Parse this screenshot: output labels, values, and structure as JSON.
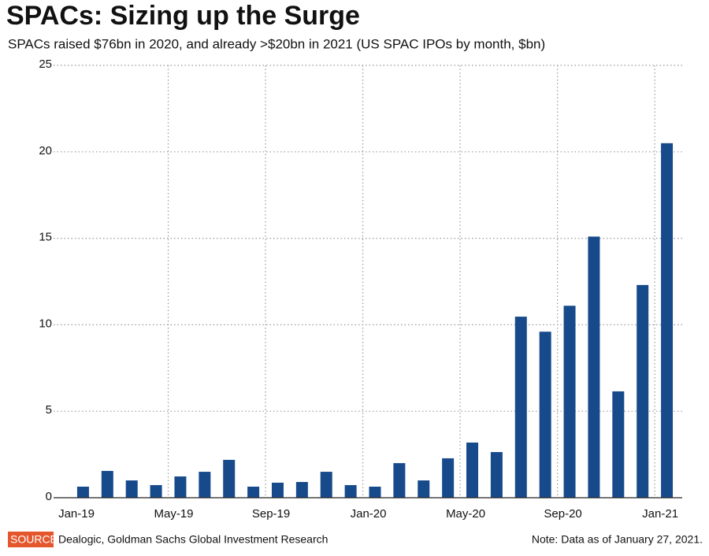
{
  "chart_data": {
    "type": "bar",
    "title": "SPACs: Sizing up the Surge",
    "subtitle": "SPACs raised $76bn in 2020, and already >$20bn in 2021 (US SPAC IPOs by month, $bn)",
    "categories": [
      "Jan-19",
      null,
      null,
      null,
      "May-19",
      null,
      null,
      null,
      "Sep-19",
      null,
      null,
      null,
      "Jan-20",
      null,
      null,
      null,
      "May-20",
      null,
      null,
      null,
      "Sep-20",
      null,
      null,
      null,
      "Jan-21"
    ],
    "values": [
      0.64,
      1.55,
      1.0,
      0.73,
      1.23,
      1.5,
      2.19,
      0.64,
      0.87,
      0.91,
      1.5,
      0.73,
      0.64,
      2.0,
      1.0,
      2.28,
      3.19,
      2.64,
      10.47,
      9.6,
      11.1,
      15.1,
      6.15,
      12.3,
      20.5
    ],
    "color": "#174a8b",
    "ylim": [
      0,
      25
    ],
    "yticks": [
      0,
      5,
      10,
      15,
      20,
      25
    ],
    "grid": true,
    "source_label": "SOURCE",
    "source": "Dealogic, Goldman Sachs Global Investment Research",
    "note": "Note: Data as of January 27, 2021."
  }
}
